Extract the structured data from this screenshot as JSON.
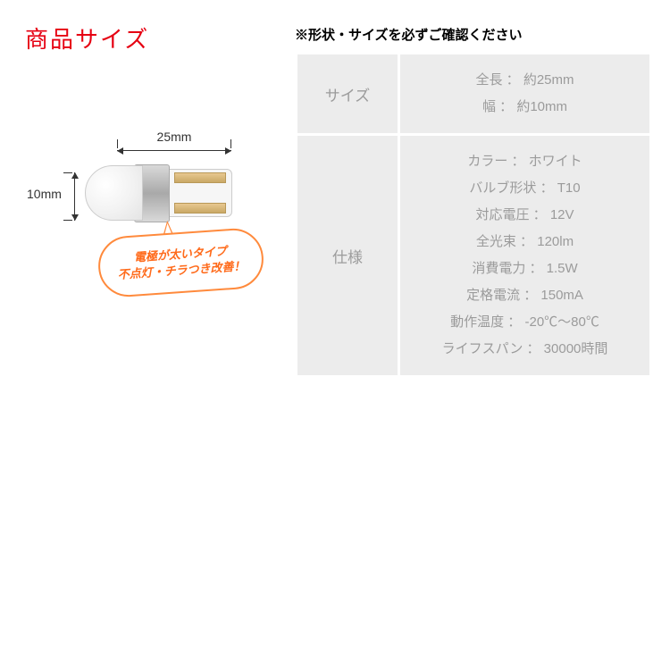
{
  "title": "商品サイズ",
  "warning": "※形状・サイズを必ずご確認ください",
  "diagram": {
    "width_label": "25mm",
    "height_label": "10mm",
    "callout_line1": "電極が太いタイプ",
    "callout_line2": "不点灯・チラつき改善！"
  },
  "table": {
    "size": {
      "label": "サイズ",
      "length": "全長 ： 約25mm",
      "width": "幅 ： 約10mm"
    },
    "spec": {
      "label": "仕様",
      "color": "カラー ： ホワイト",
      "bulb_type": "バルブ形状 ： T10",
      "voltage": "対応電圧 ： 12V",
      "lumen": "全光束 ： 120lm",
      "power": "消費電力 ： 1.5W",
      "current": "定格電流 ： 150mA",
      "temp": "動作温度 ： -20℃〜80℃",
      "life": "ライフスパン ： 30000時間"
    }
  },
  "colors": {
    "title_color": "#e60012",
    "table_bg": "#ececec",
    "table_text": "#9b9b9b",
    "callout_border": "#ff8a3c",
    "callout_text": "#ff6a1a"
  }
}
